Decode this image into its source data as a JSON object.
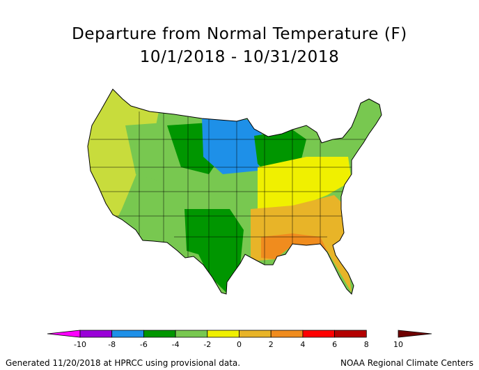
{
  "title": {
    "line1": "Departure from Normal Temperature (F)",
    "line2": "10/1/2018 - 10/31/2018"
  },
  "legend": {
    "tick_labels": [
      "-10",
      "-8",
      "-6",
      "-4",
      "-2",
      "0",
      "2",
      "4",
      "6",
      "8",
      "10"
    ],
    "min": -10,
    "max": 10,
    "step": 2,
    "colors": [
      "#ff00ff",
      "#9a00d8",
      "#1e90e8",
      "#009600",
      "#78c850",
      "#f0f000",
      "#e8b428",
      "#f08c1e",
      "#ff0000",
      "#b40000",
      "#6e0000"
    ]
  },
  "map_regions": {
    "pacific_northwest": "#c8dc3c",
    "northern_rockies": "#78c850",
    "north_central": "#1e90e8",
    "upper_midwest": "#009600",
    "central_plains": "#78c850",
    "southwest": "#78c850",
    "texas": "#009600",
    "ohio_valley": "#f0f000",
    "southeast": "#e8b428",
    "gulf_coast": "#f08c1e",
    "northeast": "#78c850"
  },
  "footer": {
    "left": "Generated 11/20/2018 at HPRCC using provisional data.",
    "right": "NOAA Regional Climate Centers"
  }
}
